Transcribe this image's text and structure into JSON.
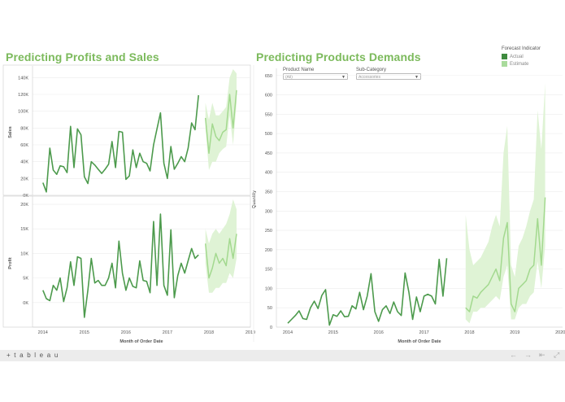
{
  "titles": {
    "left": "Predicting Profits and Sales",
    "right": "Predicting Products Demands"
  },
  "legend": {
    "title": "Forecast Indicator",
    "items": [
      {
        "label": "Actual",
        "color": "#3f8b3f"
      },
      {
        "label": "Estimate",
        "color": "#a9db9c"
      }
    ]
  },
  "filters": [
    {
      "label": "Product Name",
      "value": "(All)"
    },
    {
      "label": "Sub-Category",
      "value": "Accessories"
    }
  ],
  "colors": {
    "actual": "#4c9a4c",
    "estimate": "#a3d98f",
    "band": "#dff3d5",
    "grid": "#ececec",
    "axis": "#cccccc"
  },
  "footer": {
    "logo": "+ t a b l e a u",
    "undo": "←",
    "redo": "→",
    "reset": "⇤",
    "fullscreen": "⤢"
  },
  "chart_data": [
    {
      "type": "line",
      "title": "Sales",
      "ylabel": "Sales",
      "ylim": [
        0,
        150
      ],
      "yticks": [
        0,
        20,
        40,
        60,
        80,
        100,
        120,
        140
      ],
      "ytick_labels": [
        "0K",
        "20K",
        "40K",
        "60K",
        "80K",
        "100K",
        "120K",
        "140K"
      ],
      "xlim": [
        2013.75,
        2019.0
      ],
      "xticks": [
        2014,
        2015,
        2016,
        2017,
        2018,
        2019
      ],
      "xtick_labels": [
        "2014",
        "2015",
        "2016",
        "2017",
        "2018",
        "2019"
      ],
      "xlabel": "Month of Order Date",
      "actual": {
        "start": 2014.0,
        "step": 0.08333,
        "values": [
          15,
          4,
          56,
          30,
          25,
          35,
          34,
          27,
          82,
          33,
          79,
          72,
          22,
          14,
          40,
          36,
          31,
          26,
          31,
          37,
          64,
          33,
          76,
          75,
          19,
          23,
          54,
          33,
          50,
          40,
          38,
          29,
          60,
          79,
          98,
          38,
          20,
          58,
          31,
          38,
          46,
          40,
          56,
          86,
          78,
          119
        ]
      },
      "estimate": {
        "start": 2017.917,
        "step": 0.08333,
        "values": [
          92,
          50,
          85,
          70,
          65,
          75,
          78,
          120,
          80,
          125
        ],
        "lower": [
          80,
          30,
          40,
          40,
          50,
          55,
          58,
          95,
          60,
          110
        ],
        "upper": [
          110,
          90,
          110,
          95,
          95,
          100,
          105,
          140,
          150,
          145
        ]
      }
    },
    {
      "type": "line",
      "title": "Profit",
      "ylabel": "Profit",
      "ylim": [
        -5,
        21
      ],
      "yticks": [
        0,
        5,
        10,
        15,
        20
      ],
      "ytick_labels": [
        "0K",
        "5K",
        "10K",
        "15K",
        "20K"
      ],
      "xlim": [
        2013.75,
        2019.0
      ],
      "xticks": [
        2014,
        2015,
        2016,
        2017,
        2018,
        2019
      ],
      "xtick_labels": [
        "2014",
        "2015",
        "2016",
        "2017",
        "2018",
        "2019"
      ],
      "xlabel": "Month of Order Date",
      "actual": {
        "start": 2014.0,
        "step": 0.08333,
        "values": [
          2.5,
          0.8,
          0.4,
          3.5,
          2.5,
          5,
          0.2,
          3,
          8.3,
          3.5,
          9.3,
          9,
          -3,
          2.5,
          9,
          4,
          4.5,
          3.5,
          3.5,
          5,
          8,
          3,
          12.5,
          6,
          2.5,
          5,
          3.3,
          3,
          8.5,
          4.5,
          4.3,
          2,
          16.5,
          3.5,
          18,
          3.5,
          1.5,
          14.8,
          1,
          5.5,
          8,
          6,
          8.5,
          11,
          9,
          9.7
        ]
      },
      "estimate": {
        "start": 2017.917,
        "step": 0.08333,
        "values": [
          12,
          5,
          7,
          10,
          8,
          9,
          7.5,
          13,
          9,
          14
        ],
        "lower": [
          8,
          2,
          2,
          3,
          3,
          4,
          4,
          6,
          5,
          9
        ],
        "upper": [
          15,
          12,
          14,
          15,
          14,
          15,
          16,
          18,
          21,
          19
        ]
      }
    },
    {
      "type": "line",
      "title": "Quantity",
      "ylabel": "Quantity",
      "ylim": [
        0,
        660
      ],
      "yticks": [
        0,
        50,
        100,
        150,
        200,
        250,
        300,
        350,
        400,
        450,
        500,
        550,
        600,
        650
      ],
      "ytick_labels": [
        "0",
        "50",
        "100",
        "150",
        "200",
        "250",
        "300",
        "350",
        "400",
        "450",
        "500",
        "550",
        "600",
        "650"
      ],
      "xlim": [
        2013.75,
        2020.05
      ],
      "xticks": [
        2014,
        2015,
        2016,
        2017,
        2018,
        2019,
        2020
      ],
      "xtick_labels": [
        "2014",
        "2015",
        "2016",
        "2017",
        "2018",
        "2019",
        "2020"
      ],
      "xlabel": "Month of Order Date",
      "actual": {
        "start": 2014.0,
        "step": 0.08333,
        "values": [
          10,
          20,
          30,
          42,
          22,
          20,
          50,
          67,
          48,
          82,
          97,
          5,
          32,
          28,
          42,
          27,
          28,
          55,
          47,
          90,
          45,
          80,
          138,
          40,
          15,
          45,
          55,
          35,
          65,
          40,
          30,
          140,
          90,
          20,
          78,
          40,
          80,
          85,
          80,
          60,
          175,
          80,
          178
        ]
      },
      "estimate": {
        "start": 2017.917,
        "step": 0.08333,
        "values": [
          50,
          40,
          80,
          75,
          90,
          100,
          110,
          130,
          150,
          120,
          230,
          270,
          60,
          40,
          100,
          110,
          120,
          150,
          160,
          280,
          160,
          335
        ],
        "lower": [
          20,
          10,
          40,
          40,
          50,
          50,
          60,
          70,
          80,
          70,
          130,
          160,
          20,
          20,
          50,
          60,
          60,
          80,
          90,
          170,
          100,
          210
        ],
        "upper": [
          290,
          200,
          160,
          170,
          180,
          200,
          220,
          260,
          290,
          260,
          450,
          520,
          160,
          130,
          210,
          230,
          260,
          300,
          330,
          560,
          460,
          630
        ]
      }
    }
  ]
}
